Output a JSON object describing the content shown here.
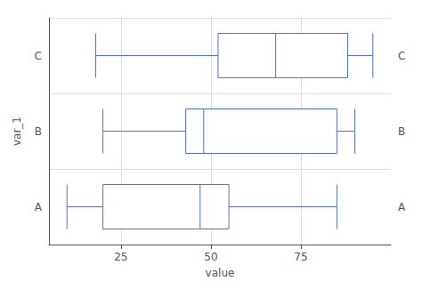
{
  "chart_data": {
    "type": "boxplot",
    "orientation": "horizontal",
    "categories": [
      "A",
      "B",
      "C"
    ],
    "values": [
      [
        10,
        20,
        47,
        55,
        85
      ],
      [
        20,
        43,
        48,
        85,
        90
      ],
      [
        18,
        52,
        68,
        88,
        95
      ]
    ],
    "xlabel": "value",
    "ylabel": "var_1",
    "xlim": [
      5,
      100
    ],
    "xticks": [
      25,
      50,
      75
    ],
    "annotations": [
      "A",
      "B",
      "C"
    ],
    "grid": true
  }
}
